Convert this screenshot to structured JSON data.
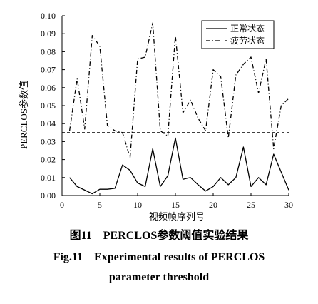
{
  "chart_data": {
    "type": "line",
    "xlabel": "视频帧序列号",
    "ylabel": "PERCLOS参数值",
    "xlim": [
      0,
      30
    ],
    "ylim": [
      0,
      0.1
    ],
    "xticks": [
      0,
      5,
      10,
      15,
      20,
      25,
      30
    ],
    "yticks": [
      0.0,
      0.01,
      0.02,
      0.03,
      0.04,
      0.05,
      0.06,
      0.07,
      0.08,
      0.09,
      0.1
    ],
    "xtick_labels": [
      "0",
      "5",
      "10",
      "15",
      "20",
      "25",
      "30"
    ],
    "ytick_labels": [
      "0.00",
      "0.01",
      "0.02",
      "0.03",
      "0.04",
      "0.05",
      "0.06",
      "0.07",
      "0.08",
      "0.09",
      "0.10"
    ],
    "legend_position": "top-right",
    "threshold": 0.035,
    "series": [
      {
        "name": "正常状态",
        "style": "solid",
        "x": [
          1,
          2,
          3,
          4,
          5,
          6,
          7,
          8,
          9,
          10,
          11,
          12,
          13,
          14,
          15,
          16,
          17,
          18,
          19,
          20,
          21,
          22,
          23,
          24,
          25,
          26,
          27,
          28,
          29,
          30
        ],
        "y": [
          0.01,
          0.005,
          0.003,
          0.001,
          0.0035,
          0.0035,
          0.004,
          0.017,
          0.014,
          0.007,
          0.005,
          0.026,
          0.005,
          0.011,
          0.032,
          0.009,
          0.01,
          0.006,
          0.0025,
          0.005,
          0.01,
          0.006,
          0.01,
          0.027,
          0.005,
          0.01,
          0.006,
          0.023,
          0.013,
          0.003
        ]
      },
      {
        "name": "疲劳状态",
        "style": "dash-dot",
        "x": [
          1,
          2,
          3,
          4,
          5,
          6,
          7,
          8,
          9,
          10,
          11,
          12,
          13,
          14,
          15,
          16,
          17,
          18,
          19,
          20,
          21,
          22,
          23,
          24,
          25,
          26,
          27,
          28,
          29,
          30
        ],
        "y": [
          0.036,
          0.065,
          0.037,
          0.089,
          0.083,
          0.039,
          0.036,
          0.035,
          0.021,
          0.076,
          0.077,
          0.096,
          0.036,
          0.033,
          0.089,
          0.046,
          0.053,
          0.043,
          0.036,
          0.07,
          0.066,
          0.032,
          0.067,
          0.073,
          0.077,
          0.057,
          0.076,
          0.026,
          0.05,
          0.054
        ]
      }
    ]
  },
  "caption": {
    "cn": "图11　PERCLOS参数阈值实验结果",
    "en_line1": "Fig.11　Experimental results of PERCLOS",
    "en_line2": "parameter threshold"
  },
  "colors": {
    "line": "#000000",
    "background": "#ffffff"
  }
}
